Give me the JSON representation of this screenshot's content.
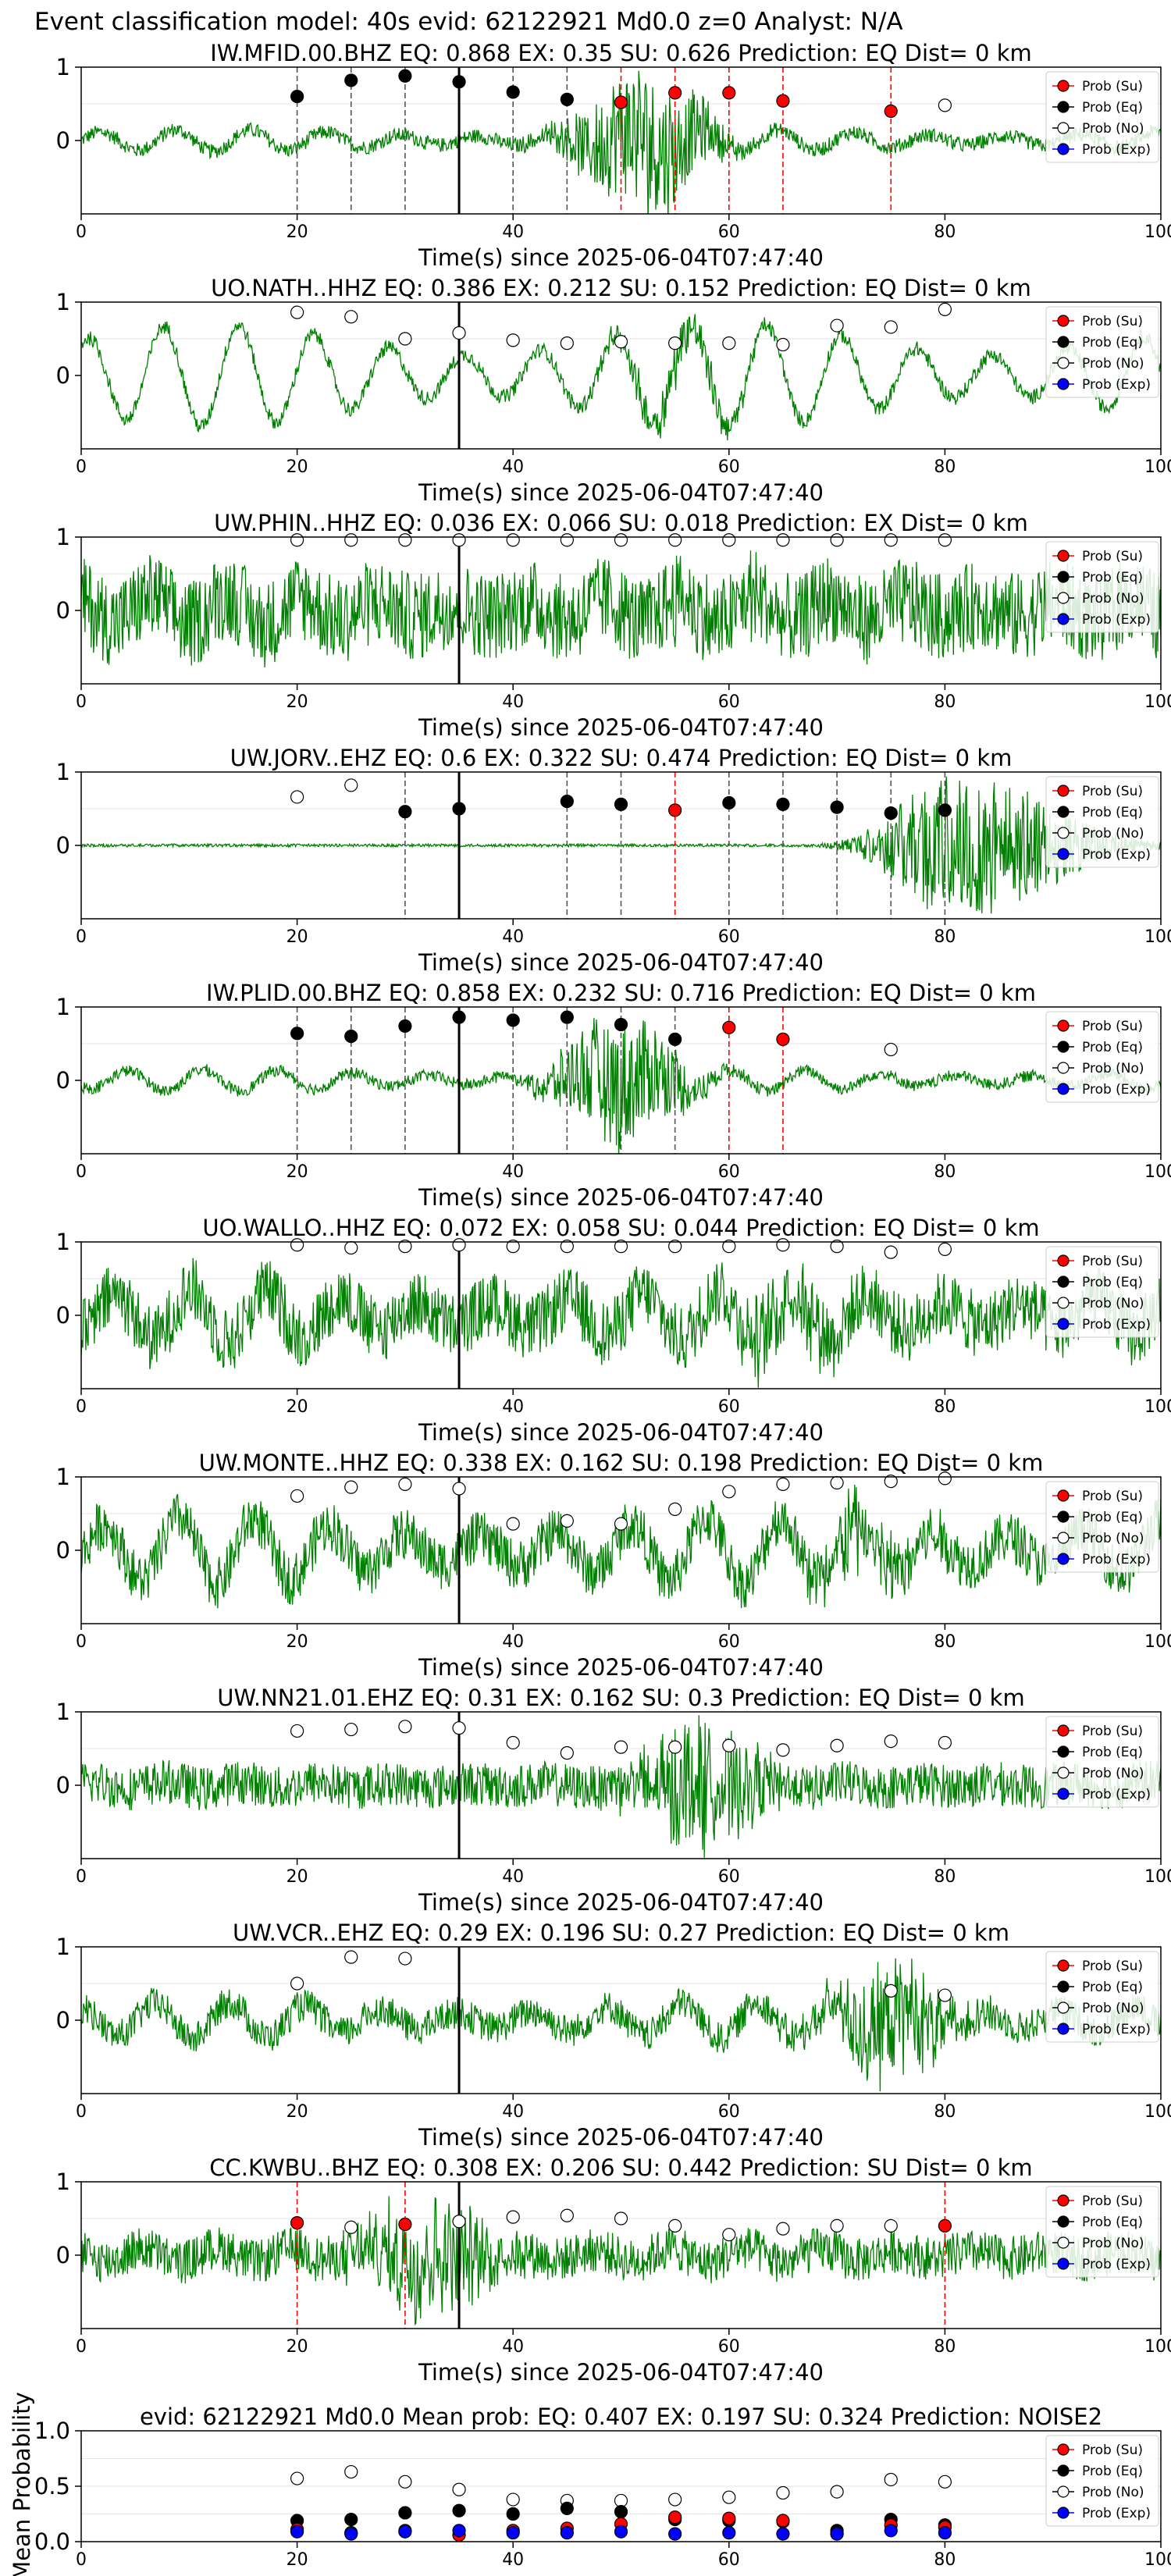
{
  "figure_title": "Event classification model: 40s evid: 62122921 Md0.0 z=0 Analyst: N/A",
  "xlabel": "Time(s) since 2025-06-04T07:47:40",
  "legend": {
    "su": "Prob (Su)",
    "eq": "Prob (Eq)",
    "no": "Prob (No)",
    "exp": "Prob (Exp)"
  },
  "colors": {
    "waveform": "#008000",
    "su": "#ff0000",
    "eq": "#000000",
    "no": "#ffffff",
    "exp": "#0000ff",
    "vline_eq": "#555555",
    "vline_su": "#ff0000",
    "pick": "#000000",
    "grid": "#e6e6e6"
  },
  "chart_data": [
    {
      "type": "scatter",
      "title": "IW.MFID.00.BHZ   EQ: 0.868   EX: 0.35   SU: 0.626   Prediction: EQ    Dist= 0 km",
      "xlim": [
        0,
        100
      ],
      "ylim": [
        -1,
        1
      ],
      "yticks": [
        0,
        1
      ],
      "xticks": [
        0,
        20,
        40,
        60,
        80,
        100
      ],
      "pick_time": 35,
      "waveform": {
        "style": "event",
        "noise": 0.1,
        "burst_center": 52,
        "burst_amp": 1.0,
        "osc": 0.15
      },
      "points": [
        {
          "x": 20,
          "y": 0.6,
          "class": "eq"
        },
        {
          "x": 25,
          "y": 0.82,
          "class": "eq"
        },
        {
          "x": 30,
          "y": 0.88,
          "class": "eq"
        },
        {
          "x": 35,
          "y": 0.8,
          "class": "eq"
        },
        {
          "x": 40,
          "y": 0.66,
          "class": "eq"
        },
        {
          "x": 45,
          "y": 0.56,
          "class": "eq"
        },
        {
          "x": 50,
          "y": 0.52,
          "class": "su"
        },
        {
          "x": 55,
          "y": 0.65,
          "class": "su"
        },
        {
          "x": 60,
          "y": 0.65,
          "class": "su"
        },
        {
          "x": 65,
          "y": 0.54,
          "class": "su"
        },
        {
          "x": 75,
          "y": 0.4,
          "class": "su"
        },
        {
          "x": 80,
          "y": 0.48,
          "class": "no"
        }
      ]
    },
    {
      "type": "scatter",
      "title": "UO.NATH..HHZ   EQ: 0.386  EX: 0.212  SU: 0.152   Prediction: EQ    Dist= 0 km",
      "xlim": [
        0,
        100
      ],
      "ylim": [
        -1,
        1
      ],
      "yticks": [
        0,
        1
      ],
      "xticks": [
        0,
        20,
        40,
        60,
        80,
        100
      ],
      "pick_time": 35,
      "waveform": {
        "style": "osc",
        "noise": 0.1,
        "burst_center": 55,
        "burst_amp": 0.3,
        "osc": 0.7
      },
      "points": [
        {
          "x": 20,
          "y": 0.86,
          "class": "no"
        },
        {
          "x": 25,
          "y": 0.8,
          "class": "no"
        },
        {
          "x": 30,
          "y": 0.5,
          "class": "no"
        },
        {
          "x": 35,
          "y": 0.58,
          "class": "no"
        },
        {
          "x": 40,
          "y": 0.48,
          "class": "no"
        },
        {
          "x": 45,
          "y": 0.44,
          "class": "no"
        },
        {
          "x": 50,
          "y": 0.46,
          "class": "no"
        },
        {
          "x": 55,
          "y": 0.44,
          "class": "no"
        },
        {
          "x": 60,
          "y": 0.44,
          "class": "no"
        },
        {
          "x": 65,
          "y": 0.42,
          "class": "no"
        },
        {
          "x": 70,
          "y": 0.68,
          "class": "no"
        },
        {
          "x": 75,
          "y": 0.66,
          "class": "no"
        },
        {
          "x": 80,
          "y": 0.9,
          "class": "no"
        }
      ]
    },
    {
      "type": "scatter",
      "title": "UW.PHIN..HHZ   EQ: 0.036  EX: 0.066  SU: 0.018   Prediction: EX    Dist= 0 km",
      "xlim": [
        0,
        100
      ],
      "ylim": [
        -1,
        1
      ],
      "yticks": [
        0,
        1
      ],
      "xticks": [
        0,
        20,
        40,
        60,
        80,
        100
      ],
      "pick_time": 35,
      "waveform": {
        "style": "noisy",
        "noise": 0.6,
        "burst_center": 60,
        "burst_amp": 0.2,
        "osc": 0.2
      },
      "points": [
        {
          "x": 20,
          "y": 0.96,
          "class": "no"
        },
        {
          "x": 25,
          "y": 0.96,
          "class": "no"
        },
        {
          "x": 30,
          "y": 0.96,
          "class": "no"
        },
        {
          "x": 35,
          "y": 0.96,
          "class": "no"
        },
        {
          "x": 40,
          "y": 0.96,
          "class": "no"
        },
        {
          "x": 45,
          "y": 0.96,
          "class": "no"
        },
        {
          "x": 50,
          "y": 0.96,
          "class": "no"
        },
        {
          "x": 55,
          "y": 0.96,
          "class": "no"
        },
        {
          "x": 60,
          "y": 0.96,
          "class": "no"
        },
        {
          "x": 65,
          "y": 0.96,
          "class": "no"
        },
        {
          "x": 70,
          "y": 0.96,
          "class": "no"
        },
        {
          "x": 75,
          "y": 0.96,
          "class": "no"
        },
        {
          "x": 80,
          "y": 0.96,
          "class": "no"
        }
      ]
    },
    {
      "type": "scatter",
      "title": "UW.JORV..EHZ   EQ: 0.6  EX: 0.322  SU: 0.474   Prediction: EQ    Dist= 0 km",
      "xlim": [
        0,
        100
      ],
      "ylim": [
        -1,
        1
      ],
      "yticks": [
        0,
        1
      ],
      "xticks": [
        0,
        20,
        40,
        60,
        80,
        100
      ],
      "pick_time": 35,
      "waveform": {
        "style": "late",
        "noise": 0.02,
        "burst_center": 82,
        "burst_amp": 1.0,
        "osc": 0.0
      },
      "points": [
        {
          "x": 20,
          "y": 0.66,
          "class": "no"
        },
        {
          "x": 25,
          "y": 0.82,
          "class": "no"
        },
        {
          "x": 30,
          "y": 0.46,
          "class": "eq"
        },
        {
          "x": 35,
          "y": 0.5,
          "class": "eq"
        },
        {
          "x": 45,
          "y": 0.6,
          "class": "eq"
        },
        {
          "x": 50,
          "y": 0.56,
          "class": "eq"
        },
        {
          "x": 55,
          "y": 0.48,
          "class": "su"
        },
        {
          "x": 60,
          "y": 0.58,
          "class": "eq"
        },
        {
          "x": 65,
          "y": 0.56,
          "class": "eq"
        },
        {
          "x": 70,
          "y": 0.52,
          "class": "eq"
        },
        {
          "x": 75,
          "y": 0.44,
          "class": "eq"
        },
        {
          "x": 80,
          "y": 0.48,
          "class": "eq"
        }
      ]
    },
    {
      "type": "scatter",
      "title": "IW.PLID.00.BHZ   EQ: 0.858  EX: 0.232  SU: 0.716   Prediction: EQ    Dist= 0 km",
      "xlim": [
        0,
        100
      ],
      "ylim": [
        -1,
        1
      ],
      "yticks": [
        0,
        1
      ],
      "xticks": [
        0,
        20,
        40,
        60,
        80,
        100
      ],
      "pick_time": 35,
      "waveform": {
        "style": "event",
        "noise": 0.08,
        "burst_center": 50,
        "burst_amp": 0.9,
        "osc": 0.15
      },
      "points": [
        {
          "x": 20,
          "y": 0.64,
          "class": "eq"
        },
        {
          "x": 25,
          "y": 0.6,
          "class": "eq"
        },
        {
          "x": 30,
          "y": 0.74,
          "class": "eq"
        },
        {
          "x": 35,
          "y": 0.86,
          "class": "eq"
        },
        {
          "x": 40,
          "y": 0.82,
          "class": "eq"
        },
        {
          "x": 45,
          "y": 0.86,
          "class": "eq"
        },
        {
          "x": 50,
          "y": 0.76,
          "class": "eq"
        },
        {
          "x": 55,
          "y": 0.56,
          "class": "eq"
        },
        {
          "x": 60,
          "y": 0.72,
          "class": "su"
        },
        {
          "x": 65,
          "y": 0.56,
          "class": "su"
        },
        {
          "x": 75,
          "y": 0.42,
          "class": "no"
        }
      ]
    },
    {
      "type": "scatter",
      "title": "UO.WALLO..HHZ   EQ: 0.072  EX: 0.058  SU: 0.044   Prediction: EQ    Dist= 0 km",
      "xlim": [
        0,
        100
      ],
      "ylim": [
        -1,
        1
      ],
      "yticks": [
        0,
        1
      ],
      "xticks": [
        0,
        20,
        40,
        60,
        80,
        100
      ],
      "pick_time": 35,
      "waveform": {
        "style": "noisy",
        "noise": 0.45,
        "burst_center": 65,
        "burst_amp": 0.3,
        "osc": 0.35
      },
      "points": [
        {
          "x": 20,
          "y": 0.96,
          "class": "no"
        },
        {
          "x": 25,
          "y": 0.92,
          "class": "no"
        },
        {
          "x": 30,
          "y": 0.94,
          "class": "no"
        },
        {
          "x": 35,
          "y": 0.96,
          "class": "no"
        },
        {
          "x": 40,
          "y": 0.94,
          "class": "no"
        },
        {
          "x": 45,
          "y": 0.94,
          "class": "no"
        },
        {
          "x": 50,
          "y": 0.94,
          "class": "no"
        },
        {
          "x": 55,
          "y": 0.94,
          "class": "no"
        },
        {
          "x": 60,
          "y": 0.94,
          "class": "no"
        },
        {
          "x": 65,
          "y": 0.96,
          "class": "no"
        },
        {
          "x": 70,
          "y": 0.94,
          "class": "no"
        },
        {
          "x": 75,
          "y": 0.86,
          "class": "no"
        },
        {
          "x": 80,
          "y": 0.9,
          "class": "no"
        }
      ]
    },
    {
      "type": "scatter",
      "title": "UW.MONTE..HHZ   EQ: 0.338  EX: 0.162  SU: 0.198   Prediction: EQ    Dist= 0 km",
      "xlim": [
        0,
        100
      ],
      "ylim": [
        -1,
        1
      ],
      "yticks": [
        0,
        1
      ],
      "xticks": [
        0,
        20,
        40,
        60,
        80,
        100
      ],
      "pick_time": 35,
      "waveform": {
        "style": "noisy",
        "noise": 0.35,
        "burst_center": 72,
        "burst_amp": 0.4,
        "osc": 0.45
      },
      "points": [
        {
          "x": 20,
          "y": 0.74,
          "class": "no"
        },
        {
          "x": 25,
          "y": 0.86,
          "class": "no"
        },
        {
          "x": 30,
          "y": 0.9,
          "class": "no"
        },
        {
          "x": 35,
          "y": 0.84,
          "class": "no"
        },
        {
          "x": 40,
          "y": 0.36,
          "class": "no"
        },
        {
          "x": 45,
          "y": 0.4,
          "class": "no"
        },
        {
          "x": 50,
          "y": 0.36,
          "class": "no"
        },
        {
          "x": 55,
          "y": 0.56,
          "class": "no"
        },
        {
          "x": 60,
          "y": 0.8,
          "class": "no"
        },
        {
          "x": 65,
          "y": 0.9,
          "class": "no"
        },
        {
          "x": 70,
          "y": 0.92,
          "class": "no"
        },
        {
          "x": 75,
          "y": 0.94,
          "class": "no"
        },
        {
          "x": 80,
          "y": 0.98,
          "class": "no"
        }
      ]
    },
    {
      "type": "scatter",
      "title": "UW.NN21.01.EHZ   EQ: 0.31  EX: 0.162  SU: 0.3   Prediction: EQ    Dist= 0 km",
      "xlim": [
        0,
        100
      ],
      "ylim": [
        -1,
        1
      ],
      "yticks": [
        0,
        1
      ],
      "xticks": [
        0,
        20,
        40,
        60,
        80,
        100
      ],
      "pick_time": 35,
      "waveform": {
        "style": "event",
        "noise": 0.3,
        "burst_center": 57,
        "burst_amp": 0.8,
        "osc": 0.05
      },
      "points": [
        {
          "x": 20,
          "y": 0.74,
          "class": "no"
        },
        {
          "x": 25,
          "y": 0.76,
          "class": "no"
        },
        {
          "x": 30,
          "y": 0.8,
          "class": "no"
        },
        {
          "x": 35,
          "y": 0.78,
          "class": "no"
        },
        {
          "x": 40,
          "y": 0.58,
          "class": "no"
        },
        {
          "x": 45,
          "y": 0.44,
          "class": "no"
        },
        {
          "x": 50,
          "y": 0.52,
          "class": "no"
        },
        {
          "x": 55,
          "y": 0.52,
          "class": "no"
        },
        {
          "x": 60,
          "y": 0.54,
          "class": "no"
        },
        {
          "x": 65,
          "y": 0.48,
          "class": "no"
        },
        {
          "x": 70,
          "y": 0.54,
          "class": "no"
        },
        {
          "x": 75,
          "y": 0.6,
          "class": "no"
        },
        {
          "x": 80,
          "y": 0.58,
          "class": "no"
        }
      ]
    },
    {
      "type": "scatter",
      "title": "UW.VCR..EHZ   EQ: 0.29  EX: 0.196  SU: 0.27   Prediction: EQ    Dist= 0 km",
      "xlim": [
        0,
        100
      ],
      "ylim": [
        -1,
        1
      ],
      "yticks": [
        0,
        1
      ],
      "xticks": [
        0,
        20,
        40,
        60,
        80,
        100
      ],
      "pick_time": 35,
      "waveform": {
        "style": "event",
        "noise": 0.22,
        "burst_center": 75,
        "burst_amp": 0.75,
        "osc": 0.25
      },
      "points": [
        {
          "x": 20,
          "y": 0.5,
          "class": "no"
        },
        {
          "x": 25,
          "y": 0.86,
          "class": "no"
        },
        {
          "x": 30,
          "y": 0.84,
          "class": "no"
        },
        {
          "x": 75,
          "y": 0.4,
          "class": "no"
        },
        {
          "x": 80,
          "y": 0.34,
          "class": "no"
        }
      ]
    },
    {
      "type": "scatter",
      "title": "CC.KWBU..BHZ   EQ: 0.308  EX: 0.206  SU: 0.442   Prediction: SU    Dist= 0 km",
      "xlim": [
        0,
        100
      ],
      "ylim": [
        -1,
        1
      ],
      "yticks": [
        0,
        1
      ],
      "xticks": [
        0,
        20,
        40,
        60,
        80,
        100
      ],
      "pick_time": 35,
      "waveform": {
        "style": "event",
        "noise": 0.3,
        "burst_center": 32,
        "burst_amp": 0.75,
        "osc": 0.1
      },
      "points": [
        {
          "x": 20,
          "y": 0.44,
          "class": "su"
        },
        {
          "x": 25,
          "y": 0.38,
          "class": "no"
        },
        {
          "x": 30,
          "y": 0.42,
          "class": "su"
        },
        {
          "x": 35,
          "y": 0.46,
          "class": "no"
        },
        {
          "x": 40,
          "y": 0.52,
          "class": "no"
        },
        {
          "x": 45,
          "y": 0.54,
          "class": "no"
        },
        {
          "x": 50,
          "y": 0.5,
          "class": "no"
        },
        {
          "x": 55,
          "y": 0.4,
          "class": "no"
        },
        {
          "x": 60,
          "y": 0.28,
          "class": "no"
        },
        {
          "x": 65,
          "y": 0.36,
          "class": "no"
        },
        {
          "x": 70,
          "y": 0.4,
          "class": "no"
        },
        {
          "x": 75,
          "y": 0.4,
          "class": "no"
        },
        {
          "x": 80,
          "y": 0.4,
          "class": "su"
        }
      ]
    },
    {
      "type": "scatter",
      "title": "evid: 62122921  Md0.0    Mean prob:   EQ: 0.407  EX: 0.197  SU: 0.324   Prediction: NOISE2",
      "ylabel": "Mean Probability",
      "xlim": [
        0,
        100
      ],
      "ylim": [
        0,
        1
      ],
      "yticks": [
        0.0,
        0.5,
        1.0
      ],
      "xticks": [
        0,
        20,
        40,
        60,
        80,
        100
      ],
      "series": [
        {
          "class": "no",
          "x": [
            20,
            25,
            30,
            35,
            40,
            45,
            50,
            55,
            60,
            65,
            70,
            75,
            80
          ],
          "y": [
            0.57,
            0.63,
            0.54,
            0.47,
            0.38,
            0.37,
            0.37,
            0.38,
            0.4,
            0.44,
            0.45,
            0.56,
            0.54
          ]
        },
        {
          "class": "eq",
          "x": [
            20,
            25,
            30,
            35,
            40,
            45,
            50,
            55,
            60,
            65,
            70,
            75,
            80
          ],
          "y": [
            0.19,
            0.2,
            0.26,
            0.28,
            0.25,
            0.3,
            0.27,
            0.2,
            0.19,
            0.18,
            0.1,
            0.2,
            0.15
          ]
        },
        {
          "class": "su",
          "x": [
            20,
            25,
            30,
            35,
            40,
            45,
            50,
            55,
            60,
            65,
            70,
            75,
            80
          ],
          "y": [
            0.11,
            0.08,
            0.1,
            0.06,
            0.1,
            0.12,
            0.16,
            0.22,
            0.21,
            0.19,
            0.07,
            0.15,
            0.13
          ]
        },
        {
          "class": "exp",
          "x": [
            20,
            25,
            30,
            35,
            40,
            45,
            50,
            55,
            60,
            65,
            70,
            75,
            80
          ],
          "y": [
            0.09,
            0.07,
            0.09,
            0.1,
            0.08,
            0.08,
            0.09,
            0.07,
            0.08,
            0.07,
            0.07,
            0.1,
            0.08
          ]
        }
      ]
    }
  ]
}
